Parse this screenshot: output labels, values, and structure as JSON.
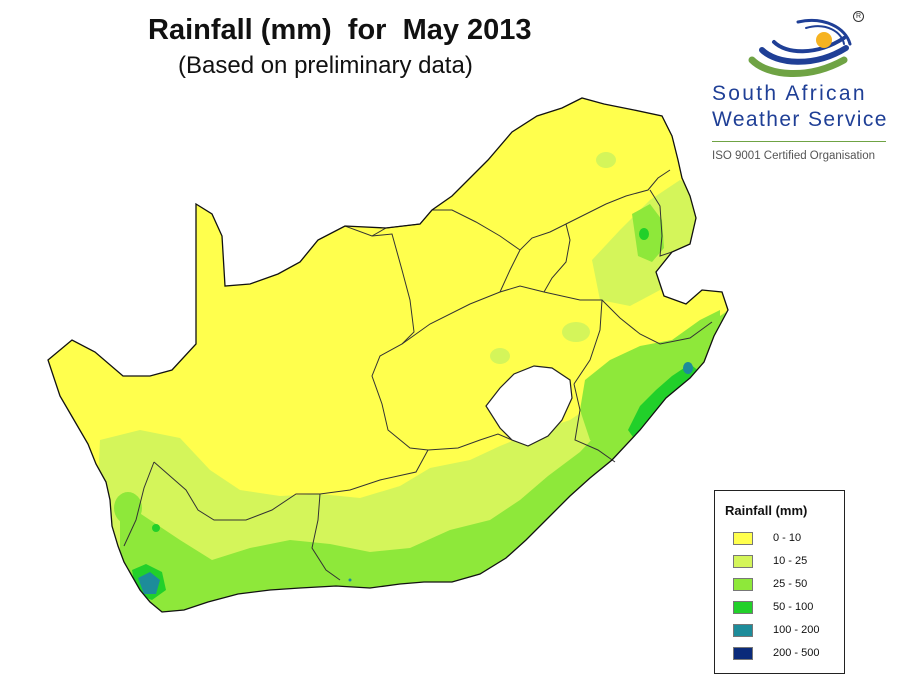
{
  "title": "Rainfall (mm)  for  May 2013",
  "subtitle": "(Based on preliminary data)",
  "logo": {
    "line1": "South African",
    "line2": "Weather Service",
    "iso": "ISO 9001 Certified Organisation",
    "reg": "R",
    "colors": {
      "blue": "#1f3f96",
      "green": "#6fa344",
      "sun": "#f6b321"
    }
  },
  "legend": {
    "title": "Rainfall (mm)",
    "items": [
      {
        "label": "0 - 10",
        "color": "#ffff4d"
      },
      {
        "label": "10 - 25",
        "color": "#d4f55a"
      },
      {
        "label": "25 - 50",
        "color": "#8ee83a"
      },
      {
        "label": "50 - 100",
        "color": "#22d02a"
      },
      {
        "label": "100 - 200",
        "color": "#1d8c9a"
      },
      {
        "label": "200 - 500",
        "color": "#0a2a7a"
      }
    ]
  },
  "map": {
    "region": "South Africa",
    "classes_shown": [
      "0 - 10",
      "10 - 25",
      "25 - 50",
      "50 - 100",
      "100 - 200"
    ],
    "unrendered_area": "Lesotho"
  }
}
